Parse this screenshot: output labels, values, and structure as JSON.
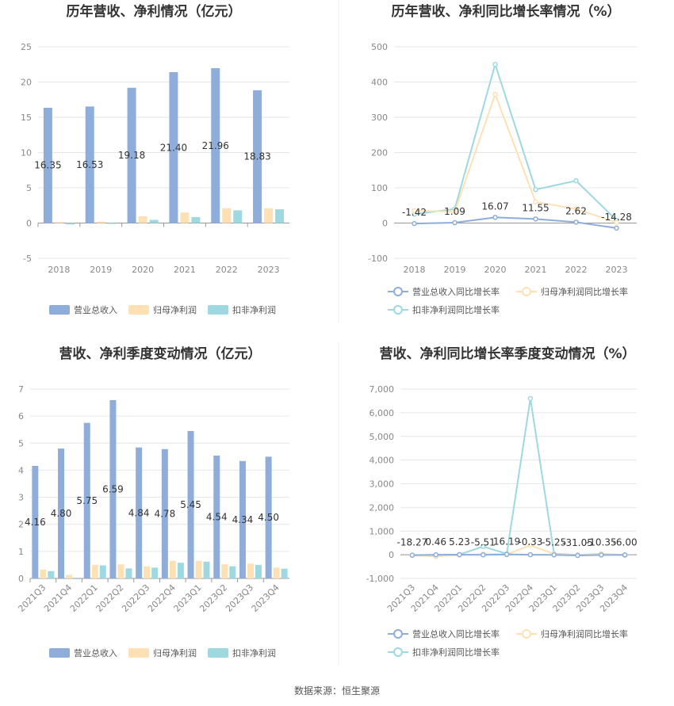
{
  "source": "数据来源：恒生聚源",
  "colors": {
    "revenue": "#8EADDB",
    "net_profit": "#FDE1B5",
    "deducted": "#9ED8E0",
    "grid": "#E6E6E6",
    "axis": "#999999"
  },
  "chart_data": [
    {
      "type": "bar",
      "title": "历年营收、净利情况（亿元）",
      "categories": [
        "2018",
        "2019",
        "2020",
        "2021",
        "2022",
        "2023"
      ],
      "ylim": [
        -5,
        25
      ],
      "yticks": [
        -5,
        0,
        5,
        10,
        15,
        20,
        25
      ],
      "series": [
        {
          "name": "营业总收入",
          "values": [
            16.35,
            16.53,
            19.18,
            21.4,
            21.96,
            18.83
          ],
          "labels": [
            "16.35",
            "16.53",
            "19.18",
            "21.40",
            "21.96",
            "18.83"
          ]
        },
        {
          "name": "归母净利润",
          "values": [
            0.15,
            0.2,
            0.95,
            1.5,
            2.1,
            2.1
          ]
        },
        {
          "name": "扣非净利润",
          "values": [
            -0.2,
            -0.1,
            0.45,
            0.85,
            1.8,
            1.95
          ]
        }
      ],
      "grid": true,
      "legend": "bottom"
    },
    {
      "type": "line",
      "title": "历年营收、净利同比增长率情况（%）",
      "categories": [
        "2018",
        "2019",
        "2020",
        "2021",
        "2022",
        "2023"
      ],
      "ylim": [
        -100,
        500
      ],
      "yticks": [
        -100,
        0,
        100,
        200,
        300,
        400,
        500
      ],
      "series": [
        {
          "name": "营业总收入同比增长率",
          "values": [
            -1.42,
            1.09,
            16.07,
            11.55,
            2.62,
            -14.28
          ],
          "labels": [
            "-1.42",
            "1.09",
            "16.07",
            "11.55",
            "2.62",
            "-14.28"
          ]
        },
        {
          "name": "归母净利润同比增长率",
          "values": [
            35,
            32,
            365,
            60,
            40,
            2
          ]
        },
        {
          "name": "扣非净利润同比增长率",
          "values": [
            25,
            40,
            450,
            95,
            120,
            8
          ]
        }
      ],
      "grid": true,
      "legend": "bottom"
    },
    {
      "type": "bar",
      "title": "营收、净利季度变动情况（亿元）",
      "categories": [
        "2021Q3",
        "2021Q4",
        "2022Q1",
        "2022Q2",
        "2022Q3",
        "2022Q4",
        "2023Q1",
        "2023Q2",
        "2023Q3",
        "2023Q4"
      ],
      "ylim": [
        0,
        7
      ],
      "yticks": [
        0,
        1,
        2,
        3,
        4,
        5,
        6,
        7
      ],
      "series": [
        {
          "name": "营业总收入",
          "values": [
            4.16,
            4.8,
            5.75,
            6.59,
            4.84,
            4.78,
            5.45,
            4.54,
            4.34,
            4.5
          ],
          "labels": [
            "4.16",
            "4.80",
            "5.75",
            "6.59",
            "4.84",
            "4.78",
            "5.45",
            "4.54",
            "4.34",
            "4.50"
          ]
        },
        {
          "name": "归母净利润",
          "values": [
            0.33,
            0.13,
            0.5,
            0.52,
            0.45,
            0.65,
            0.65,
            0.52,
            0.55,
            0.4
          ]
        },
        {
          "name": "扣非净利润",
          "values": [
            0.27,
            0.0,
            0.48,
            0.37,
            0.4,
            0.58,
            0.62,
            0.45,
            0.5,
            0.36
          ]
        }
      ],
      "grid": true,
      "legend": "bottom"
    },
    {
      "type": "line",
      "title": "营收、净利同比增长率季度变动情况（%）",
      "categories": [
        "2021Q3",
        "2021Q4",
        "2022Q1",
        "2022Q2",
        "2022Q3",
        "2022Q4",
        "2023Q1",
        "2023Q2",
        "2023Q3",
        "2023Q4"
      ],
      "ylim": [
        -1000,
        7000
      ],
      "yticks": [
        -1000,
        0,
        1000,
        2000,
        3000,
        4000,
        5000,
        6000,
        7000
      ],
      "ytick_labels": [
        "-1,000",
        "0",
        "1,000",
        "2,000",
        "3,000",
        "4,000",
        "5,000",
        "6,000",
        "7,000"
      ],
      "series": [
        {
          "name": "营业总收入同比增长率",
          "values": [
            -18.27,
            0.46,
            5.23,
            -5.51,
            16.19,
            -0.33,
            -5.25,
            -31.05,
            -10.35,
            -6.0
          ],
          "labels": [
            "-18.27",
            "0.46",
            "5.23",
            "-5.51",
            "16.19",
            "-0.33",
            "-5.25",
            "-31.05",
            "-10.35",
            "-6.00"
          ]
        },
        {
          "name": "归母净利润同比增长率",
          "values": [
            -30,
            -60,
            -20,
            30,
            20,
            400,
            30,
            -20,
            30,
            -10
          ]
        },
        {
          "name": "扣非净利润同比增长率",
          "values": [
            -20,
            -70,
            10,
            350,
            40,
            6600,
            50,
            -10,
            40,
            -20
          ]
        }
      ],
      "grid": true,
      "legend": "bottom"
    }
  ]
}
